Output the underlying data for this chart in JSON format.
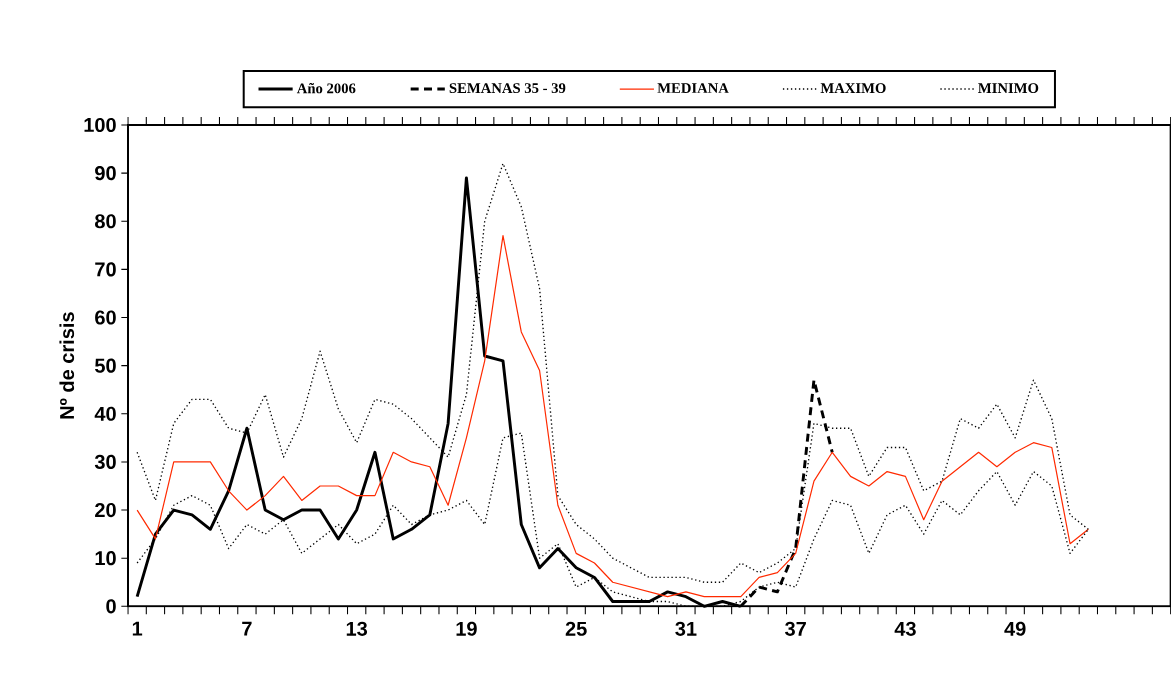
{
  "chart_data": {
    "type": "line",
    "ylabel": "Nº de crisis",
    "categories": [
      "1",
      null,
      null,
      null,
      null,
      null,
      "7",
      null,
      null,
      null,
      null,
      null,
      "13",
      null,
      null,
      null,
      null,
      null,
      "19",
      null,
      null,
      null,
      null,
      null,
      "25",
      null,
      null,
      null,
      null,
      null,
      "31",
      null,
      null,
      null,
      null,
      null,
      "37",
      null,
      null,
      null,
      null,
      null,
      "43",
      null,
      null,
      null,
      null,
      null,
      "49",
      null,
      null,
      null,
      null,
      null,
      null,
      null,
      null
    ],
    "ylim": [
      0,
      100
    ],
    "yticks": [
      0,
      10,
      20,
      30,
      40,
      50,
      60,
      70,
      80,
      90,
      100
    ],
    "grid": false,
    "legend": "top",
    "series": [
      {
        "name": "Año 2006",
        "color": "#000000",
        "line_style": "solid",
        "values": [
          2,
          15,
          20,
          19,
          16,
          24,
          37,
          20,
          18,
          20,
          20,
          14,
          20,
          32,
          14,
          16,
          19,
          38,
          89,
          52,
          51,
          17,
          8,
          12,
          8,
          6,
          1,
          1,
          1,
          3,
          2,
          0,
          1,
          0,
          null,
          null,
          null,
          null,
          null,
          null,
          null,
          null,
          null,
          null,
          null,
          null,
          null,
          null,
          null,
          null,
          null,
          null,
          null,
          null,
          null,
          null,
          null
        ]
      },
      {
        "name": "SEMANAS  35 - 39",
        "color": "#000000",
        "line_style": "dashed",
        "values": [
          null,
          null,
          null,
          null,
          null,
          null,
          null,
          null,
          null,
          null,
          null,
          null,
          null,
          null,
          null,
          null,
          null,
          null,
          null,
          null,
          null,
          null,
          null,
          null,
          null,
          null,
          null,
          null,
          null,
          null,
          null,
          null,
          null,
          0,
          4,
          3,
          12,
          47,
          32,
          null,
          null,
          null,
          null,
          null,
          null,
          null,
          null,
          null,
          null,
          null,
          null,
          null,
          null,
          null,
          null,
          null,
          null
        ]
      },
      {
        "name": "MEDIANA",
        "color": "#ff2a00",
        "line_style": "solid",
        "values": [
          20,
          14,
          30,
          30,
          30,
          24,
          20,
          23,
          27,
          22,
          25,
          25,
          23,
          23,
          32,
          30,
          29,
          21,
          35,
          51,
          77,
          57,
          49,
          21,
          11,
          9,
          5,
          4,
          3,
          2,
          3,
          2,
          2,
          2,
          6,
          7,
          11,
          26,
          32,
          27,
          25,
          28,
          27,
          18,
          26,
          29,
          32,
          29,
          32,
          34,
          33,
          13,
          16,
          null,
          null,
          null,
          null
        ]
      },
      {
        "name": "MAXIMO",
        "color": "#000000",
        "line_style": "dotted",
        "values": [
          32,
          22,
          38,
          43,
          43,
          37,
          36,
          44,
          31,
          39,
          53,
          41,
          34,
          43,
          42,
          39,
          35,
          31,
          44,
          80,
          92,
          83,
          66,
          23,
          17,
          14,
          10,
          8,
          6,
          6,
          6,
          5,
          5,
          9,
          7,
          9,
          12,
          38,
          37,
          37,
          27,
          33,
          33,
          24,
          26,
          39,
          37,
          42,
          35,
          47,
          39,
          19,
          16,
          null,
          null,
          null,
          null
        ]
      },
      {
        "name": "MINIMO",
        "color": "#000000",
        "line_style": "dotted",
        "values": [
          9,
          14,
          21,
          23,
          21,
          12,
          17,
          15,
          18,
          11,
          14,
          17,
          13,
          15,
          21,
          17,
          19,
          20,
          22,
          17,
          35,
          36,
          10,
          13,
          4,
          6,
          3,
          2,
          1,
          1,
          0,
          0,
          0,
          1,
          4,
          5,
          4,
          14,
          22,
          21,
          11,
          19,
          21,
          15,
          22,
          19,
          24,
          28,
          21,
          28,
          25,
          11,
          16,
          null,
          null,
          null,
          null
        ]
      }
    ]
  }
}
